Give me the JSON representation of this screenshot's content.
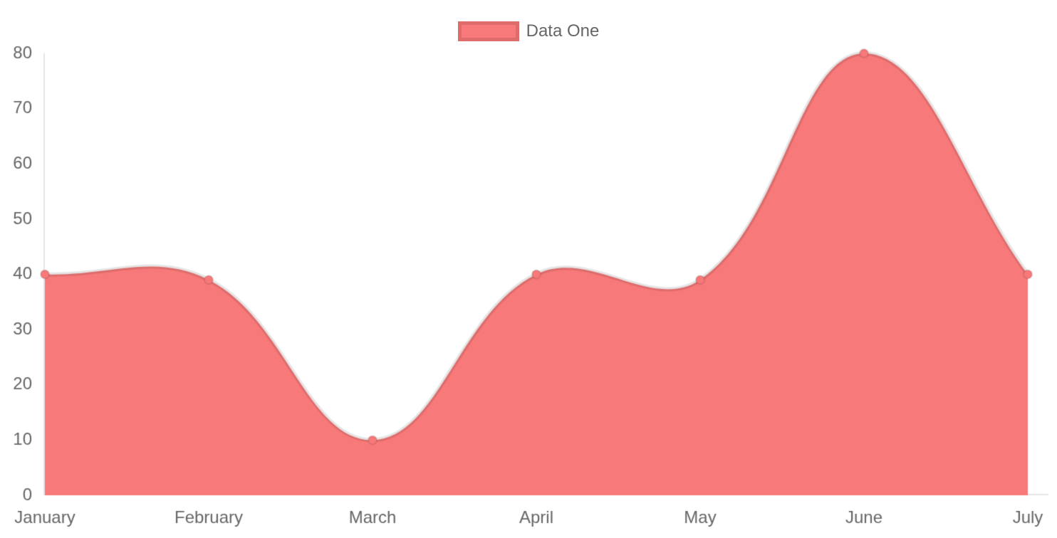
{
  "chart_data": {
    "type": "area",
    "title": "",
    "categories": [
      "January",
      "February",
      "March",
      "April",
      "May",
      "June",
      "July"
    ],
    "series": [
      {
        "name": "Data One",
        "values": [
          40,
          39,
          10,
          40,
          39,
          80,
          40
        ]
      }
    ],
    "xlabel": "",
    "ylabel": "",
    "ylim": [
      0,
      80
    ],
    "y_ticks": [
      0,
      10,
      20,
      30,
      40,
      50,
      60,
      70,
      80
    ],
    "grid": false,
    "legend_position": "top",
    "style": {
      "fill_color": "#f87979",
      "line_color": "rgba(0,0,0,0.10)",
      "point_fill_color": "#f87979",
      "point_border_color": "rgba(0,0,0,0.10)",
      "axis_line_color": "rgba(0,0,0,0.10)",
      "tick_text_color": "#666666",
      "legend_text_color": "#666666",
      "background_color": "#ffffff",
      "curve_tension": 0.4,
      "line_width": 6,
      "point_radius": 6,
      "point_border_width": 2,
      "font_size": 24
    }
  }
}
